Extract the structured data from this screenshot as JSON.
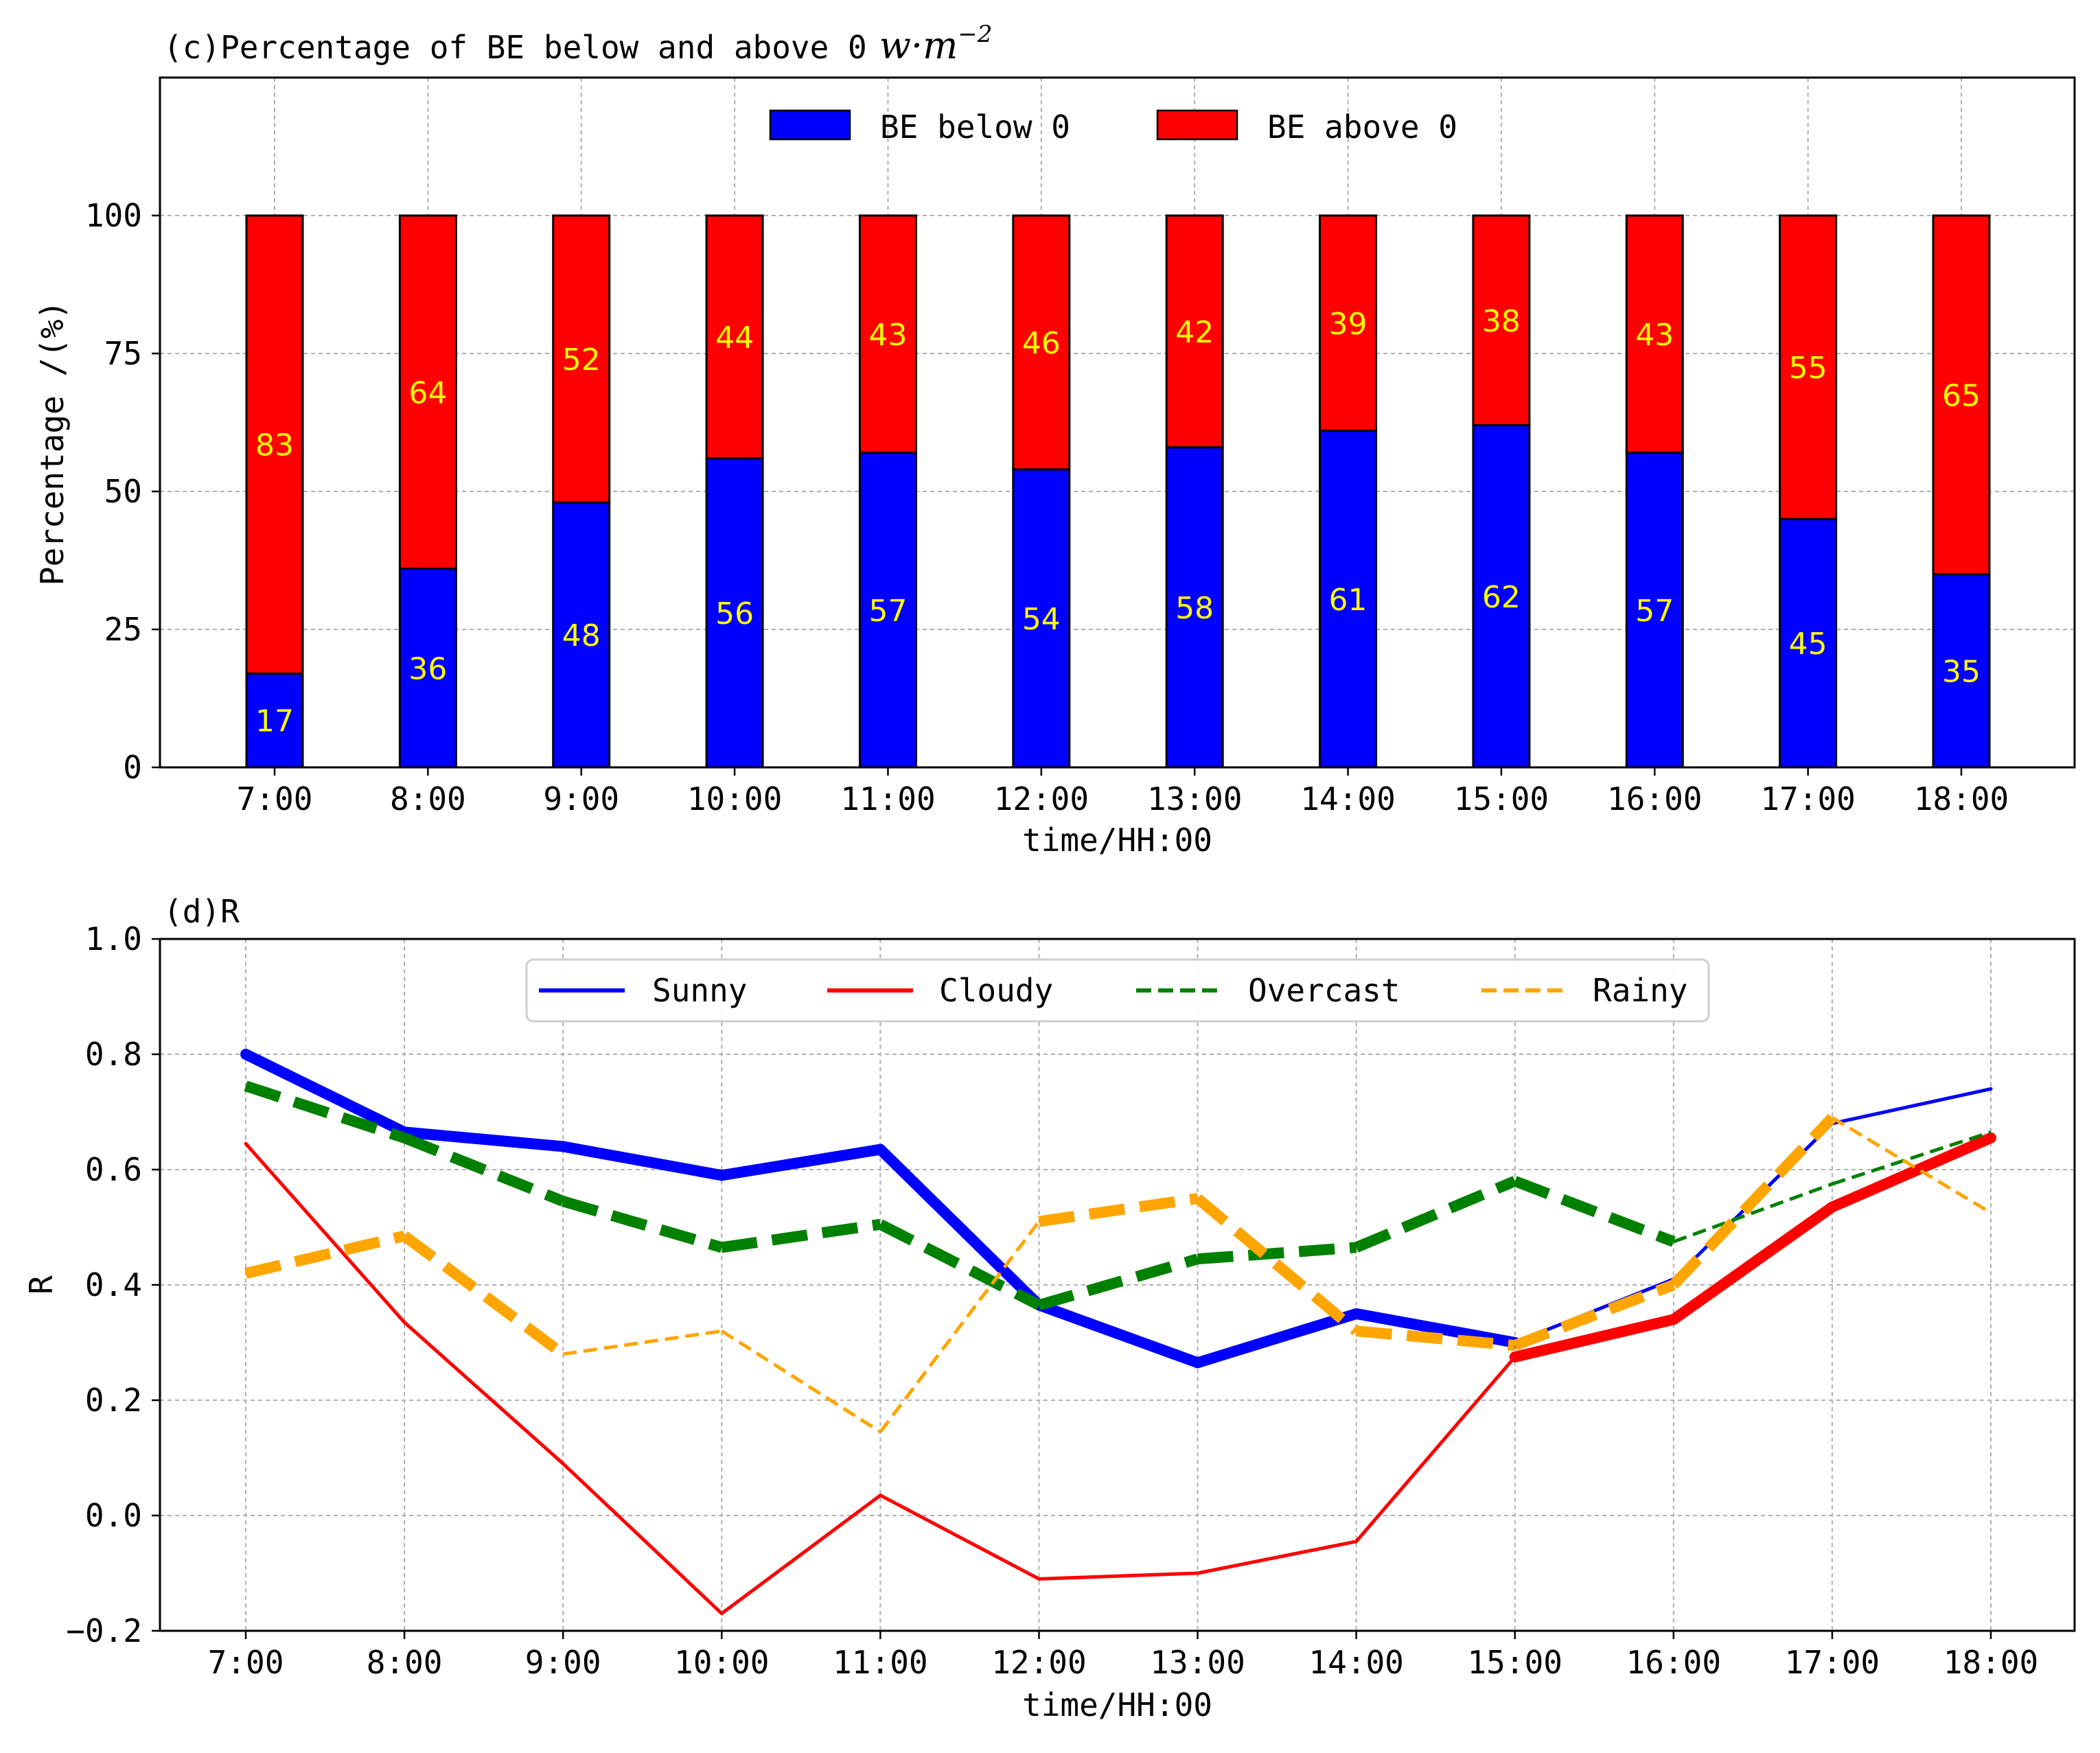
{
  "chart_data": [
    {
      "type": "bar",
      "stacked": true,
      "title": "(c)Percentage of BE below and above 0",
      "title_unit": "w·m",
      "title_unit_exp": "−2",
      "xlabel": "time/HH:00",
      "ylabel": "Percentage /(%)",
      "ylim": [
        0,
        125
      ],
      "yticks": [
        0,
        25,
        50,
        75,
        100
      ],
      "categories": [
        "7:00",
        "8:00",
        "9:00",
        "10:00",
        "11:00",
        "12:00",
        "13:00",
        "14:00",
        "15:00",
        "16:00",
        "17:00",
        "18:00"
      ],
      "series": [
        {
          "name": "BE below 0",
          "color": "#0000ff",
          "values": [
            17,
            36,
            48,
            56,
            57,
            54,
            58,
            61,
            62,
            57,
            45,
            35
          ]
        },
        {
          "name": "BE above 0",
          "color": "#ff0000",
          "values": [
            83,
            64,
            52,
            44,
            43,
            46,
            42,
            39,
            38,
            43,
            55,
            65
          ]
        }
      ],
      "data_label_color": "#ffff00",
      "grid": true,
      "legend_position": "top-center"
    },
    {
      "type": "line",
      "title": "(d)R",
      "xlabel": "time/HH:00",
      "ylabel": "R",
      "ylim": [
        -0.2,
        1.0
      ],
      "yticks": [
        -0.2,
        0.0,
        0.2,
        0.4,
        0.6,
        0.8,
        1.0
      ],
      "ytick_labels": [
        "−0.2",
        "0.0",
        "0.2",
        "0.4",
        "0.6",
        "0.8",
        "1.0"
      ],
      "categories": [
        "7:00",
        "8:00",
        "9:00",
        "10:00",
        "11:00",
        "12:00",
        "13:00",
        "14:00",
        "15:00",
        "16:00",
        "17:00",
        "18:00"
      ],
      "series": [
        {
          "name": "Sunny",
          "color": "#0000ff",
          "dash": "solid",
          "values": [
            0.8,
            0.665,
            0.64,
            0.59,
            0.635,
            0.365,
            0.265,
            0.35,
            0.3,
            0.41,
            0.68,
            0.74
          ],
          "significant": [
            true,
            true,
            true,
            true,
            true,
            true,
            true,
            true,
            true,
            false,
            false,
            true
          ]
        },
        {
          "name": "Cloudy",
          "color": "#ff0000",
          "dash": "solid",
          "values": [
            0.645,
            0.335,
            0.09,
            -0.17,
            0.035,
            -0.11,
            -0.1,
            -0.045,
            0.275,
            0.34,
            0.535,
            0.655
          ],
          "significant": [
            true,
            false,
            false,
            false,
            false,
            false,
            false,
            false,
            true,
            true,
            true,
            true
          ]
        },
        {
          "name": "Overcast",
          "color": "#008000",
          "dash": "dashed",
          "values": [
            0.745,
            0.655,
            0.545,
            0.465,
            0.505,
            0.365,
            0.445,
            0.465,
            0.58,
            0.475,
            0.575,
            0.665
          ],
          "significant": [
            true,
            true,
            true,
            true,
            true,
            true,
            true,
            true,
            true,
            true,
            false,
            false
          ]
        },
        {
          "name": "Rainy",
          "color": "#ffa500",
          "dash": "dashed",
          "values": [
            0.42,
            0.485,
            0.28,
            0.32,
            0.145,
            0.51,
            0.55,
            0.32,
            0.295,
            0.4,
            0.69,
            0.525
          ],
          "significant": [
            true,
            true,
            true,
            false,
            false,
            true,
            true,
            true,
            true,
            true,
            true,
            false
          ]
        }
      ],
      "grid": true,
      "legend_position": "top-center"
    }
  ]
}
